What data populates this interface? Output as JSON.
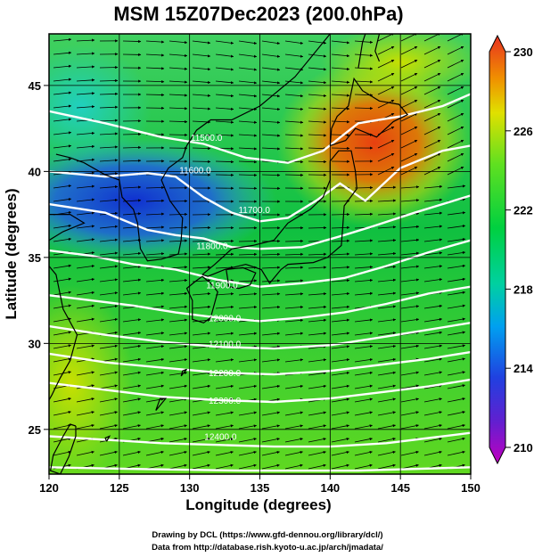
{
  "chart_data": {
    "type": "heatmap",
    "title": "MSM 15Z07Dec2023 (200.0hPa)",
    "xlabel": "Longitude (degrees)",
    "ylabel": "Latitude  (degrees)",
    "xlim": [
      120,
      150
    ],
    "ylim": [
      22.4,
      48
    ],
    "x_ticks": [
      "120",
      "125",
      "130",
      "135",
      "140",
      "145",
      "150"
    ],
    "y_ticks": [
      "25",
      "30",
      "35",
      "40",
      "45"
    ],
    "colorbar": {
      "range": [
        210,
        230
      ],
      "ticks": [
        "210",
        "214",
        "218",
        "222",
        "226",
        "230"
      ]
    },
    "contour_labels": [
      {
        "text": "11500.0",
        "lon": 131.2,
        "lat": 42.0
      },
      {
        "text": "11600.0",
        "lon": 130.4,
        "lat": 40.1
      },
      {
        "text": "11700.0",
        "lon": 134.6,
        "lat": 37.8
      },
      {
        "text": "11800.0",
        "lon": 131.6,
        "lat": 35.7
      },
      {
        "text": "11900.0",
        "lon": 132.3,
        "lat": 33.4
      },
      {
        "text": "12000.0",
        "lon": 132.5,
        "lat": 31.5
      },
      {
        "text": "12100.0",
        "lon": 132.5,
        "lat": 30.0
      },
      {
        "text": "12200.0",
        "lon": 132.5,
        "lat": 28.3
      },
      {
        "text": "12300.0",
        "lon": 132.5,
        "lat": 26.7
      },
      {
        "text": "12400.0",
        "lon": 132.2,
        "lat": 24.6
      }
    ],
    "grid": true
  },
  "credits": {
    "line1": "Drawing by DCL (https://www.gfd-dennou.org/library/dcl/)",
    "line2": "Data from http://database.rish.kyoto-u.ac.jp/arch/jmadata/"
  }
}
